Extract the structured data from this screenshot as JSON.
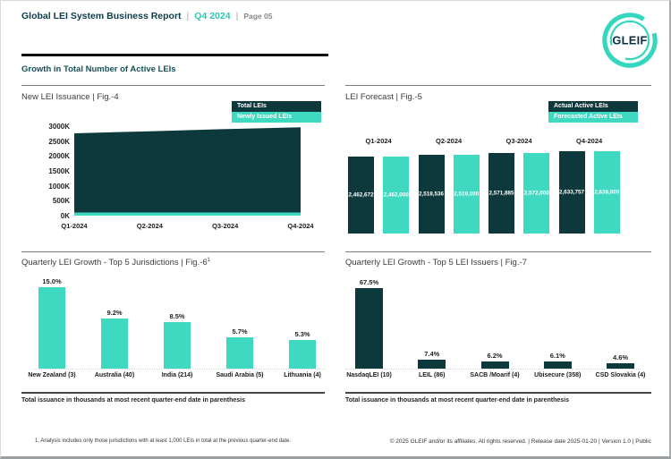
{
  "header": {
    "title": "Global LEI System Business Report",
    "separator": "|",
    "quarter": "Q4 2024",
    "page_label": "Page 05",
    "logo_text": "GLEIF"
  },
  "section": {
    "heading": "Growth in Total Number of Active LEIs"
  },
  "colors": {
    "dark_teal": "#0e393c",
    "turquoise": "#3ed9c0",
    "accent_text": "#2cc8b2",
    "heading_text": "#15505a"
  },
  "chart_data": [
    {
      "id": "fig4",
      "type": "area",
      "title": "New LEI Issuance | Fig.-4",
      "x": [
        "Q1-2024",
        "Q2-2024",
        "Q3-2024",
        "Q4-2024"
      ],
      "series": [
        {
          "name": "Total LEIs",
          "color": "#0e393c",
          "values": [
            2760000,
            2830000,
            2900000,
            2960000
          ],
          "estimated": true
        },
        {
          "name": "Newly Issued LEIs",
          "color": "#3ed9c0",
          "values": [
            70000,
            70000,
            70000,
            70000
          ],
          "estimated": true
        }
      ],
      "y_ticks": [
        "3000K",
        "2500K",
        "2000K",
        "1500K",
        "1000K",
        "500K",
        "0K"
      ],
      "ylim": [
        0,
        3000000
      ],
      "legend_position": "top-right",
      "grid": false
    },
    {
      "id": "fig5",
      "type": "bar",
      "title": "LEI Forecast | Fig.-5",
      "categories": [
        "Q1-2024",
        "Q2-2024",
        "Q3-2024",
        "Q4-2024"
      ],
      "series": [
        {
          "name": "Actual Active LEIs",
          "color": "#0e393c",
          "values": [
            2462672,
            2518536,
            2571885,
            2633757
          ],
          "labels": [
            "2,462,672",
            "2,518,536",
            "2,571,885",
            "2,633,757"
          ]
        },
        {
          "name": "Forecasted Active LEIs",
          "color": "#3ed9c0",
          "values": [
            2462000,
            2519000,
            2572000,
            2638000
          ],
          "labels": [
            "2,462,000",
            "2,519,000",
            "2,572,000",
            "2,638,000"
          ]
        }
      ],
      "legend_position": "top-right",
      "category_labels_position": "above-bars",
      "grid": false
    },
    {
      "id": "fig6",
      "type": "bar",
      "title": "Quarterly LEI Growth - Top 5 Jurisdictions | Fig.-6",
      "title_superscript": "1",
      "categories": [
        "New Zealand (3)",
        "Australia (40)",
        "India (214)",
        "Saudi Arabia (5)",
        "Lithuania (4)"
      ],
      "values": [
        15.0,
        9.2,
        8.5,
        5.7,
        5.3
      ],
      "labels": [
        "15.0%",
        "9.2%",
        "8.5%",
        "5.7%",
        "5.3%"
      ],
      "bar_color": "#3ed9c0",
      "grid": false
    },
    {
      "id": "fig7",
      "type": "bar",
      "title": "Quarterly LEI Growth - Top 5 LEI Issuers | Fig.-7",
      "categories": [
        "NasdaqLEI (10)",
        "LEIL (86)",
        "SACB /Moarif (4)",
        "Ubisecure (358)",
        "CSD Slovakia (4)"
      ],
      "values": [
        67.5,
        7.4,
        6.2,
        6.1,
        4.6
      ],
      "labels": [
        "67.5%",
        "7.4%",
        "6.2%",
        "6.1%",
        "4.6%"
      ],
      "bar_color": "#0e393c",
      "grid": false
    }
  ],
  "footers": {
    "left_note": "Total issuance in thousands at most recent quarter-end date in parenthesis",
    "right_note": "Total issuance in thousands at most recent quarter-end date in parenthesis",
    "footnote": "1. Analysis includes only those jurisdictions with at least 1,000 LEIs in total at the previous quarter-end date.",
    "copyright": "© 2025 GLEIF and/or its affiliates. All rights reserved. | Release date 2025-01-20 | Version 1.0 | Public"
  }
}
